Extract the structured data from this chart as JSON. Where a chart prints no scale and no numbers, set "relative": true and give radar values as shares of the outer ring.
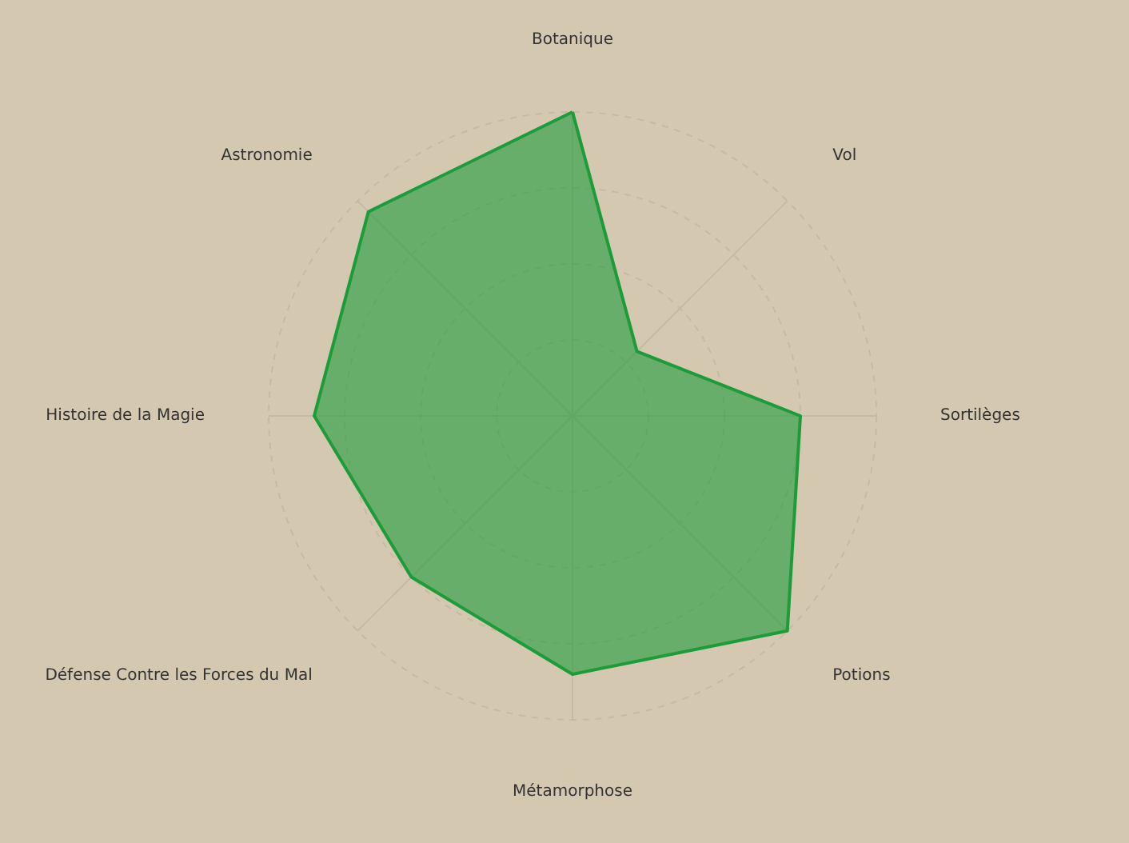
{
  "chart_data": {
    "type": "radar",
    "relative": true,
    "grid": true,
    "categories": [
      "Botanique",
      "Vol",
      "Sortilèges",
      "Potions",
      "Métamorphose",
      "Défense Contre les Forces du Mal",
      "Histoire de la Magie",
      "Astronomie"
    ],
    "series": [
      {
        "color": "#1c9c3a",
        "values": [
          1,
          0.3,
          0.75,
          1,
          0.85,
          0.75,
          0.85,
          0.95
        ]
      }
    ]
  }
}
